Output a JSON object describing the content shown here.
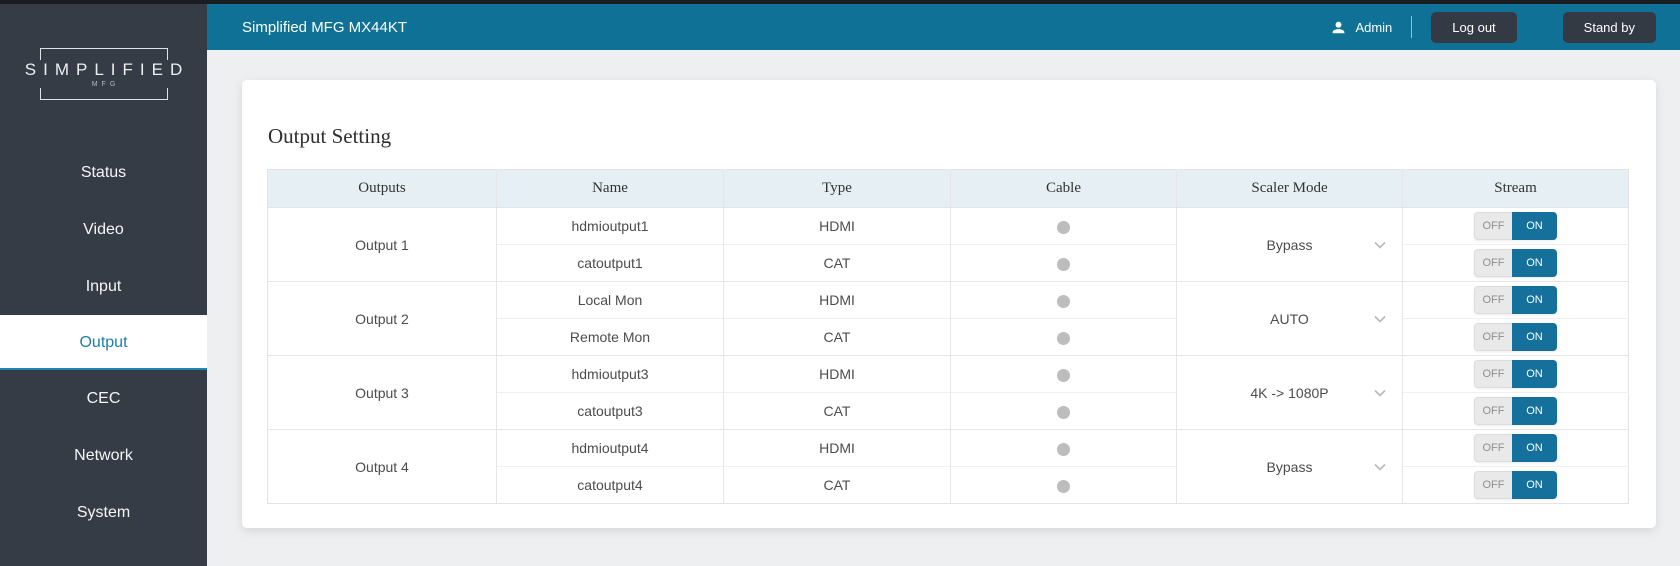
{
  "sidebar": {
    "logo": {
      "line1": "SIMPLIFIED",
      "line2": "MFG"
    },
    "items": [
      {
        "label": "Status",
        "selected": false
      },
      {
        "label": "Video",
        "selected": false
      },
      {
        "label": "Input",
        "selected": false
      },
      {
        "label": "Output",
        "selected": true
      },
      {
        "label": "CEC",
        "selected": false
      },
      {
        "label": "Network",
        "selected": false
      },
      {
        "label": "System",
        "selected": false
      }
    ]
  },
  "header": {
    "title": "Simplified MFG MX44KT",
    "user_label": "Admin",
    "logout_label": "Log out",
    "standby_label": "Stand by"
  },
  "main": {
    "title": "Output Setting",
    "table": {
      "columns": [
        "Outputs",
        "Name",
        "Type",
        "Cable",
        "Scaler Mode",
        "Stream"
      ],
      "toggle_labels": {
        "off": "OFF",
        "on": "ON"
      },
      "groups": [
        {
          "output": "Output 1",
          "scaler_mode": "Bypass",
          "rows": [
            {
              "name": "hdmioutput1",
              "type": "HDMI",
              "cable": "inactive",
              "stream": "ON"
            },
            {
              "name": "catoutput1",
              "type": "CAT",
              "cable": "inactive",
              "stream": "ON"
            }
          ]
        },
        {
          "output": "Output 2",
          "scaler_mode": "AUTO",
          "rows": [
            {
              "name": "Local Mon",
              "type": "HDMI",
              "cable": "inactive",
              "stream": "ON"
            },
            {
              "name": "Remote Mon",
              "type": "CAT",
              "cable": "inactive",
              "stream": "ON"
            }
          ]
        },
        {
          "output": "Output 3",
          "scaler_mode": "4K -> 1080P",
          "rows": [
            {
              "name": "hdmioutput3",
              "type": "HDMI",
              "cable": "inactive",
              "stream": "ON"
            },
            {
              "name": "catoutput3",
              "type": "CAT",
              "cable": "inactive",
              "stream": "ON"
            }
          ]
        },
        {
          "output": "Output 4",
          "scaler_mode": "Bypass",
          "rows": [
            {
              "name": "hdmioutput4",
              "type": "HDMI",
              "cable": "inactive",
              "stream": "ON"
            },
            {
              "name": "catoutput4",
              "type": "CAT",
              "cable": "inactive",
              "stream": "ON"
            }
          ]
        }
      ]
    }
  },
  "colors": {
    "header_teal": "#0e7195",
    "on_button_teal": "#15719b",
    "sidebar_dark": "#353c45",
    "selected_item_text": "#1d7fa3",
    "selected_item_underline": "#1e88b5",
    "table_header_bg": "#e6eff3",
    "cable_dot_gray": "#bdbdbd"
  }
}
